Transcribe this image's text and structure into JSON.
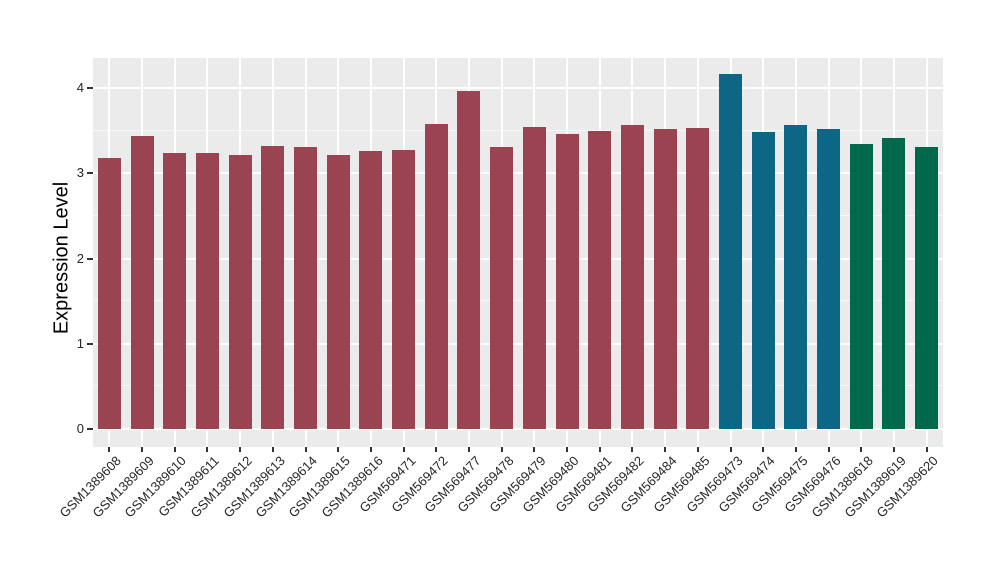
{
  "chart_data": {
    "type": "bar",
    "title": "",
    "xlabel": "",
    "ylabel": "Expression Level",
    "categories": [
      "GSM1389608",
      "GSM1389609",
      "GSM1389610",
      "GSM1389611",
      "GSM1389612",
      "GSM1389613",
      "GSM1389614",
      "GSM1389615",
      "GSM1389616",
      "GSM569471",
      "GSM569472",
      "GSM569477",
      "GSM569478",
      "GSM569479",
      "GSM569480",
      "GSM569481",
      "GSM569482",
      "GSM569484",
      "GSM569485",
      "GSM569473",
      "GSM569474",
      "GSM569475",
      "GSM569476",
      "GSM1389618",
      "GSM1389619",
      "GSM1389620"
    ],
    "values": [
      3.18,
      3.44,
      3.24,
      3.24,
      3.22,
      3.32,
      3.31,
      3.21,
      3.26,
      3.27,
      3.58,
      3.97,
      3.31,
      3.54,
      3.46,
      3.5,
      3.57,
      3.52,
      3.53,
      4.16,
      3.48,
      3.57,
      3.52,
      3.34,
      3.41,
      3.31
    ],
    "bar_colors": [
      "#9B4451",
      "#9B4451",
      "#9B4451",
      "#9B4451",
      "#9B4451",
      "#9B4451",
      "#9B4451",
      "#9B4451",
      "#9B4451",
      "#9B4451",
      "#9B4451",
      "#9B4451",
      "#9B4451",
      "#9B4451",
      "#9B4451",
      "#9B4451",
      "#9B4451",
      "#9B4451",
      "#9B4451",
      "#0C6686",
      "#0C6686",
      "#0C6686",
      "#0C6686",
      "#00694B",
      "#00694B",
      "#00694B"
    ],
    "palette": {
      "maroon": "#9B4451",
      "teal": "#0C6686",
      "green": "#00694B"
    },
    "y_ticks": [
      0,
      1,
      2,
      3,
      4
    ],
    "y_minor_ticks": [
      0.5,
      1.5,
      2.5,
      3.5
    ],
    "ylim": [
      -0.21,
      4.35
    ],
    "grid": true,
    "legend_position": "none",
    "panel_background": "#EBEBEB",
    "gridline_color": "#FFFFFF",
    "axis_text_color": "#262626",
    "x_tick_angle_degrees": 45
  }
}
